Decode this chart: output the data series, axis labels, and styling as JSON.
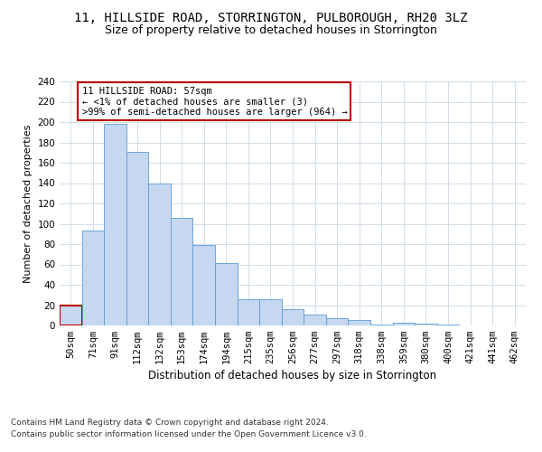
{
  "title1": "11, HILLSIDE ROAD, STORRINGTON, PULBOROUGH, RH20 3LZ",
  "title2": "Size of property relative to detached houses in Storrington",
  "xlabel": "Distribution of detached houses by size in Storrington",
  "ylabel": "Number of detached properties",
  "categories": [
    "50sqm",
    "71sqm",
    "91sqm",
    "112sqm",
    "132sqm",
    "153sqm",
    "174sqm",
    "194sqm",
    "215sqm",
    "235sqm",
    "256sqm",
    "277sqm",
    "297sqm",
    "318sqm",
    "338sqm",
    "359sqm",
    "380sqm",
    "400sqm",
    "421sqm",
    "441sqm",
    "462sqm"
  ],
  "values": [
    20,
    93,
    198,
    171,
    140,
    106,
    79,
    61,
    26,
    26,
    16,
    11,
    7,
    5,
    1,
    3,
    2,
    1,
    0,
    0,
    0
  ],
  "bar_color": "#c5d8f0",
  "bar_edge_color": "#5b9bd5",
  "highlight_bar_index": 0,
  "highlight_bar_edge_color": "#c00000",
  "annotation_box_text": "11 HILLSIDE ROAD: 57sqm\n← <1% of detached houses are smaller (3)\n>99% of semi-detached houses are larger (964) →",
  "annotation_box_color": "#ffffff",
  "annotation_box_edge_color": "#c00000",
  "ylim": [
    0,
    240
  ],
  "yticks": [
    0,
    20,
    40,
    60,
    80,
    100,
    120,
    140,
    160,
    180,
    200,
    220,
    240
  ],
  "footnote1": "Contains HM Land Registry data © Crown copyright and database right 2024.",
  "footnote2": "Contains public sector information licensed under the Open Government Licence v3.0.",
  "bg_color": "#ffffff",
  "grid_color": "#d0dce8",
  "title1_fontsize": 10,
  "title2_fontsize": 9,
  "xlabel_fontsize": 8.5,
  "ylabel_fontsize": 8,
  "tick_fontsize": 7.5,
  "annotation_fontsize": 7.5,
  "footnote_fontsize": 6.5
}
